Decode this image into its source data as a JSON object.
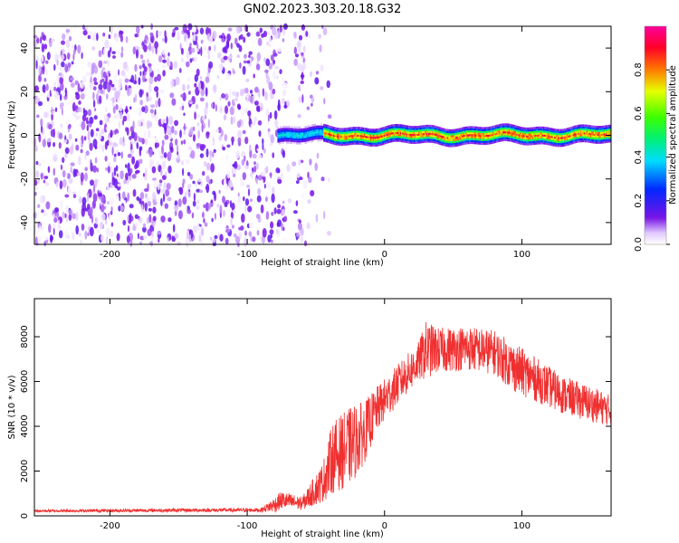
{
  "title": "GN02.2023.303.20.18.G32",
  "chart_data": [
    {
      "type": "heatmap",
      "xlabel": "Height of straight line (km)",
      "ylabel": "Frequency (Hz)",
      "xlim": [
        -255,
        165
      ],
      "ylim": [
        -50,
        50
      ],
      "x_ticks": [
        -200,
        -100,
        0,
        100
      ],
      "y_ticks": [
        -40,
        -20,
        0,
        20,
        40
      ],
      "colorbar": {
        "label": "Normalized spectral amplitude",
        "range": [
          0.0,
          1.0
        ],
        "ticks": [
          0.0,
          0.2,
          0.4,
          0.6,
          0.8
        ],
        "tick_labels": [
          "0.0",
          "0.2",
          "0.4",
          "0.6",
          "0.8"
        ],
        "colormap": "rainbow (white → violet → blue → cyan → green → yellow → red → magenta)"
      },
      "regions": {
        "noise_x_range": [
          -255,
          -40
        ],
        "noise_peak_amplitude": 0.15,
        "signal_x_range": [
          -78,
          165
        ],
        "signal_center_frequency": 0,
        "signal_peak_amplitude": 0.95
      }
    },
    {
      "type": "line",
      "xlabel": "Height of straight line (km)",
      "ylabel": "SNR (10 * v/v)",
      "xlim": [
        -255,
        165
      ],
      "ylim": [
        0,
        9700
      ],
      "x_ticks": [
        -200,
        -100,
        0,
        100
      ],
      "y_ticks": [
        0,
        2000,
        4000,
        6000,
        8000
      ],
      "series": [
        {
          "color": "#f03030",
          "envelope": {
            "x": [
              -255,
              -150,
              -90,
              -80,
              -75,
              -60,
              -45,
              -38,
              -30,
              -22,
              -15,
              -5,
              10,
              25,
              30,
              40,
              60,
              80,
              95,
              110,
              130,
              150,
              165
            ],
            "mean": [
              220,
              250,
              260,
              500,
              700,
              550,
              1500,
              2600,
              2900,
              3300,
              3700,
              4800,
              5900,
              6900,
              7400,
              7400,
              7500,
              7300,
              6600,
              6100,
              5400,
              5000,
              4700
            ],
            "noise": [
              60,
              80,
              90,
              350,
              400,
              300,
              900,
              1600,
              1700,
              1700,
              1400,
              1000,
              900,
              900,
              1300,
              1000,
              1000,
              1000,
              1100,
              1000,
              850,
              800,
              700
            ]
          }
        }
      ]
    }
  ]
}
